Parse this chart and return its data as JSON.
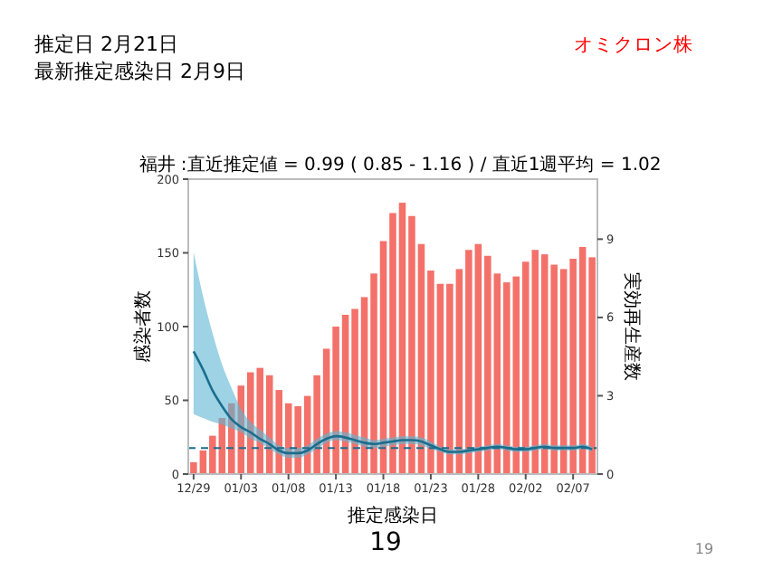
{
  "chart_data": {
    "type": "bar",
    "title": "推定日  2月21日",
    "subtitle": "最新推定感染日  2月9日",
    "xlabel": "推定感染日",
    "ylabel": "感染者数",
    "y2label": "実効再生産数",
    "annotations": [
      "福井 :直近推定値 = 0.99 ( 0.85 - 1.16 ) / 直近1週平均 = 1.02",
      "オミクロン株",
      "19",
      "19"
    ],
    "categories": [
      "12/29",
      null,
      null,
      null,
      null,
      "01/03",
      null,
      null,
      null,
      null,
      "01/08",
      null,
      null,
      null,
      null,
      "01/13",
      null,
      null,
      null,
      null,
      "01/18",
      null,
      null,
      null,
      null,
      "01/23",
      null,
      null,
      null,
      null,
      "01/28",
      null,
      null,
      null,
      null,
      "02/02",
      null,
      null,
      null,
      null,
      "02/07",
      null,
      null
    ],
    "ylim": [
      0,
      200
    ],
    "yticks": [
      0,
      50,
      100,
      150,
      200
    ],
    "y2lim": [
      0,
      11.3
    ],
    "y2ticks": [
      0,
      3,
      6,
      9
    ],
    "grid": false,
    "ref_lines": [
      {
        "axis": "y2",
        "value": 1,
        "color": "#1a6e8e",
        "line_style": "dashed"
      }
    ],
    "series": [
      {
        "color": "#f4716a",
        "values": [
          8,
          16,
          26,
          38,
          48,
          60,
          69,
          72,
          67,
          57,
          48,
          46,
          53,
          67,
          85,
          100,
          108,
          112,
          120,
          136,
          158,
          177,
          184,
          175,
          156,
          138,
          129,
          129,
          139,
          152,
          156,
          148,
          136,
          130,
          134,
          144,
          152,
          149,
          142,
          139,
          146,
          154,
          147
        ]
      },
      {
        "type": "line",
        "axis": "y2",
        "color": "#1a6e8e",
        "values": [
          4.7,
          4.0,
          3.2,
          2.6,
          2.1,
          1.8,
          1.6,
          1.35,
          1.15,
          0.9,
          0.8,
          0.8,
          0.9,
          1.15,
          1.35,
          1.45,
          1.4,
          1.3,
          1.2,
          1.15,
          1.2,
          1.25,
          1.3,
          1.3,
          1.25,
          1.1,
          0.95,
          0.85,
          0.85,
          0.9,
          0.95,
          1.0,
          1.05,
          1.0,
          0.95,
          0.95,
          1.0,
          1.05,
          1.0,
          1.0,
          1.0,
          1.05,
          0.95
        ],
        "lower": [
          2.3,
          2.15,
          2.0,
          1.9,
          1.75,
          1.6,
          1.35,
          1.2,
          0.95,
          0.75,
          0.62,
          0.62,
          0.75,
          0.95,
          1.2,
          1.3,
          1.25,
          1.15,
          1.05,
          1.0,
          1.05,
          1.1,
          1.15,
          1.15,
          1.1,
          0.95,
          0.85,
          0.75,
          0.75,
          0.8,
          0.85,
          0.9,
          0.95,
          0.9,
          0.85,
          0.85,
          0.9,
          0.95,
          0.9,
          0.9,
          0.9,
          0.95,
          0.85
        ],
        "upper": [
          8.5,
          6.8,
          5.4,
          4.2,
          3.3,
          2.5,
          2.0,
          1.7,
          1.4,
          1.1,
          1.0,
          1.0,
          1.1,
          1.35,
          1.55,
          1.65,
          1.6,
          1.5,
          1.4,
          1.3,
          1.35,
          1.4,
          1.45,
          1.45,
          1.4,
          1.25,
          1.05,
          0.95,
          0.95,
          1.0,
          1.05,
          1.1,
          1.15,
          1.1,
          1.05,
          1.05,
          1.1,
          1.15,
          1.1,
          1.1,
          1.1,
          1.15,
          1.05
        ]
      }
    ]
  }
}
